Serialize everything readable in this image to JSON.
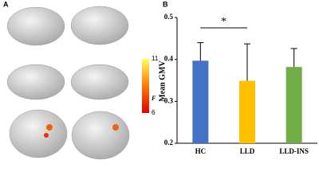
{
  "panels": [
    "A",
    "B"
  ],
  "colorbar": {
    "label": "F",
    "ticks": [
      11,
      6
    ]
  },
  "chart_data": {
    "type": "bar",
    "y_label": "Mean GMV",
    "categories": [
      "HC",
      "LLD",
      "LLD-INS"
    ],
    "values": [
      0.397,
      0.349,
      0.382
    ],
    "errors": [
      0.043,
      0.088,
      0.044
    ],
    "colors": [
      "#4472c4",
      "#ffc000",
      "#70ad47"
    ],
    "ylim": [
      0.2,
      0.5
    ],
    "yticks": [
      0.2,
      0.3,
      0.4,
      0.5
    ],
    "annotation": "*"
  }
}
